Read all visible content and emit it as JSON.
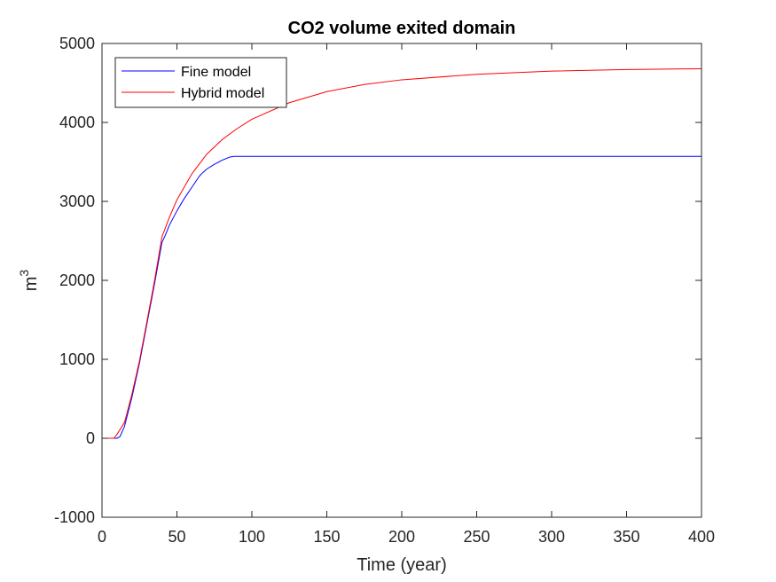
{
  "chart_data": {
    "type": "line",
    "title": "CO2 volume exited domain",
    "xlabel": "Time (year)",
    "ylabel_base": "m",
    "ylabel_sup": "3",
    "xlim": [
      0,
      400
    ],
    "ylim": [
      -1000,
      5000
    ],
    "xticks": [
      0,
      50,
      100,
      150,
      200,
      250,
      300,
      350,
      400
    ],
    "yticks": [
      -1000,
      0,
      1000,
      2000,
      3000,
      4000,
      5000
    ],
    "grid": false,
    "legend_position": "top-left",
    "series": [
      {
        "name": "Fine model",
        "color": "#0000ff",
        "points": [
          [
            0,
            0
          ],
          [
            10,
            0
          ],
          [
            12,
            20
          ],
          [
            15,
            150
          ],
          [
            20,
            520
          ],
          [
            25,
            950
          ],
          [
            30,
            1450
          ],
          [
            35,
            1950
          ],
          [
            40,
            2480
          ],
          [
            42,
            2560
          ],
          [
            45,
            2700
          ],
          [
            50,
            2880
          ],
          [
            55,
            3040
          ],
          [
            60,
            3180
          ],
          [
            65,
            3320
          ],
          [
            67,
            3360
          ],
          [
            70,
            3410
          ],
          [
            75,
            3470
          ],
          [
            80,
            3520
          ],
          [
            85,
            3560
          ],
          [
            88,
            3570
          ],
          [
            100,
            3570
          ],
          [
            150,
            3570
          ],
          [
            200,
            3570
          ],
          [
            250,
            3570
          ],
          [
            300,
            3570
          ],
          [
            350,
            3570
          ],
          [
            400,
            3570
          ]
        ]
      },
      {
        "name": "Hybrid model",
        "color": "#ff0000",
        "points": [
          [
            0,
            0
          ],
          [
            8,
            0
          ],
          [
            10,
            50
          ],
          [
            15,
            200
          ],
          [
            20,
            560
          ],
          [
            25,
            980
          ],
          [
            30,
            1480
          ],
          [
            35,
            1990
          ],
          [
            40,
            2550
          ],
          [
            45,
            2800
          ],
          [
            50,
            3020
          ],
          [
            60,
            3350
          ],
          [
            70,
            3600
          ],
          [
            80,
            3780
          ],
          [
            90,
            3920
          ],
          [
            100,
            4040
          ],
          [
            125,
            4250
          ],
          [
            150,
            4390
          ],
          [
            175,
            4480
          ],
          [
            200,
            4540
          ],
          [
            250,
            4610
          ],
          [
            300,
            4650
          ],
          [
            350,
            4670
          ],
          [
            400,
            4680
          ]
        ]
      }
    ]
  }
}
